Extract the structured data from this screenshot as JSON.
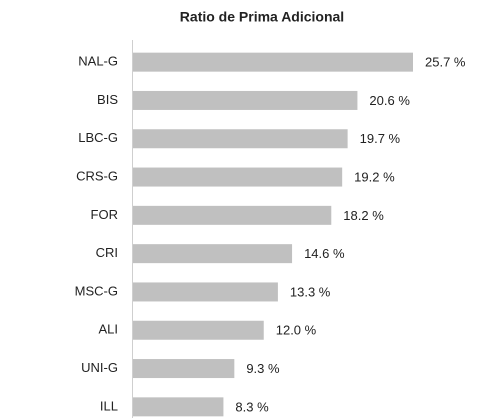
{
  "chart_data": {
    "type": "hbar",
    "title": "Ratio de Prima Adicional",
    "categories": [
      "NAL-G",
      "BIS",
      "LBC-G",
      "CRS-G",
      "FOR",
      "CRI",
      "MSC-G",
      "ALI",
      "UNI-G",
      "ILL"
    ],
    "values": [
      25.7,
      20.6,
      19.7,
      19.2,
      18.2,
      14.6,
      13.3,
      12.0,
      9.3,
      8.3
    ],
    "value_labels": [
      "25.7 %",
      "20.6 %",
      "19.7 %",
      "19.2 %",
      "18.2 %",
      "14.6 %",
      "13.3 %",
      "12.0 %",
      "9.3 %",
      "8.3 %"
    ],
    "color": "#c0c0c0"
  }
}
